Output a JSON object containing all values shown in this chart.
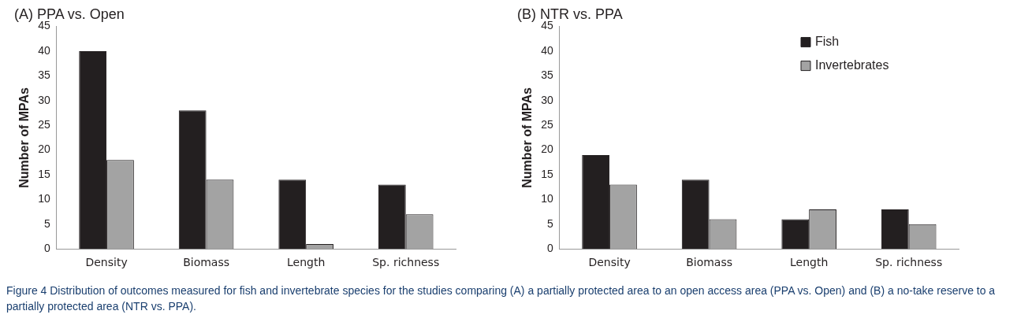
{
  "chart_data": [
    {
      "type": "bar",
      "title": "(A) PPA vs. Open",
      "ylabel": "Number of MPAs",
      "categories": [
        "Density",
        "Biomass",
        "Length",
        "Sp. richness"
      ],
      "series": [
        {
          "color": "#231f20",
          "values": [
            40,
            28,
            14,
            13
          ]
        },
        {
          "color": "#a3a3a3",
          "values": [
            18,
            14,
            1,
            7
          ]
        }
      ],
      "ylim": [
        0,
        45
      ],
      "yticks": [
        0,
        5,
        10,
        15,
        20,
        25,
        30,
        35,
        40,
        45
      ],
      "grid": false,
      "legend": false,
      "annotations": [
        "Figure 4 Distribution of outcomes measured for fish and invertebrate species for the studies comparing (A) a partially protected area to an open access area (PPA vs. Open) and (B) a no-take reserve to a partially protected area (NTR vs. PPA)."
      ]
    },
    {
      "type": "bar",
      "title": "(B) NTR vs. PPA",
      "ylabel": "Number of MPAs",
      "categories": [
        "Density",
        "Biomass",
        "Length",
        "Sp. richness"
      ],
      "series": [
        {
          "name": "Fish",
          "color": "#231f20",
          "values": [
            19,
            14,
            6,
            8
          ]
        },
        {
          "name": "Invertebrates",
          "color": "#a3a3a3",
          "values": [
            13,
            6,
            8,
            5
          ]
        }
      ],
      "ylim": [
        0,
        45
      ],
      "yticks": [
        0,
        5,
        10,
        15,
        20,
        25,
        30,
        35,
        40,
        45
      ],
      "grid": false,
      "legend": "top right"
    }
  ]
}
